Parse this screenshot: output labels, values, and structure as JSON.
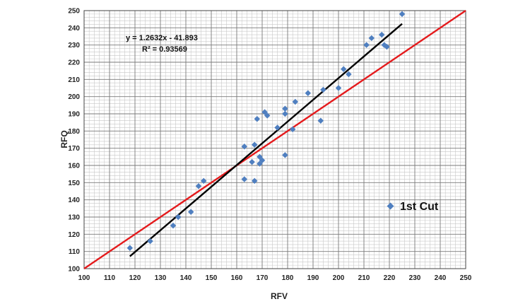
{
  "chart_data": {
    "type": "scatter",
    "title": "",
    "xlabel": "RFV",
    "ylabel": "RFQ",
    "xlim": [
      100,
      250
    ],
    "ylim": [
      100,
      250
    ],
    "x_ticks": [
      100,
      110,
      120,
      130,
      140,
      150,
      160,
      170,
      180,
      190,
      200,
      210,
      220,
      230,
      240,
      250
    ],
    "y_ticks": [
      100,
      110,
      120,
      130,
      140,
      150,
      160,
      170,
      180,
      190,
      200,
      210,
      220,
      230,
      240,
      250
    ],
    "grid": "major and minor",
    "legend_position": "lower-right",
    "colors": {
      "points": "#4f7fc0",
      "trendline": "#000000",
      "reference_line": "#e41a1c"
    },
    "series": [
      {
        "name": "1st Cut",
        "points": [
          [
            118,
            112
          ],
          [
            126,
            116
          ],
          [
            135,
            125
          ],
          [
            137,
            130
          ],
          [
            142,
            133
          ],
          [
            145,
            148
          ],
          [
            147,
            151
          ],
          [
            163,
            171
          ],
          [
            163,
            152
          ],
          [
            166,
            162
          ],
          [
            167,
            172
          ],
          [
            167,
            151
          ],
          [
            168,
            187
          ],
          [
            169,
            165
          ],
          [
            169,
            161
          ],
          [
            170,
            163
          ],
          [
            171,
            191
          ],
          [
            172,
            189
          ],
          [
            176,
            182
          ],
          [
            179,
            166
          ],
          [
            179,
            190
          ],
          [
            179,
            193
          ],
          [
            182,
            181
          ],
          [
            183,
            197
          ],
          [
            188,
            202
          ],
          [
            193,
            186
          ],
          [
            194,
            204
          ],
          [
            200,
            205
          ],
          [
            202,
            216
          ],
          [
            204,
            213
          ],
          [
            211,
            230
          ],
          [
            213,
            234
          ],
          [
            217,
            236
          ],
          [
            218,
            230
          ],
          [
            219,
            229
          ],
          [
            225,
            248
          ]
        ]
      }
    ],
    "trendline": {
      "slope": 1.2632,
      "intercept": -41.893,
      "x_range": [
        118,
        225
      ],
      "equation_label": "y = 1.2632x - 41.893",
      "r2_label": "R² = 0.93569"
    },
    "reference_line": {
      "slope": 1,
      "intercept": 0
    }
  }
}
